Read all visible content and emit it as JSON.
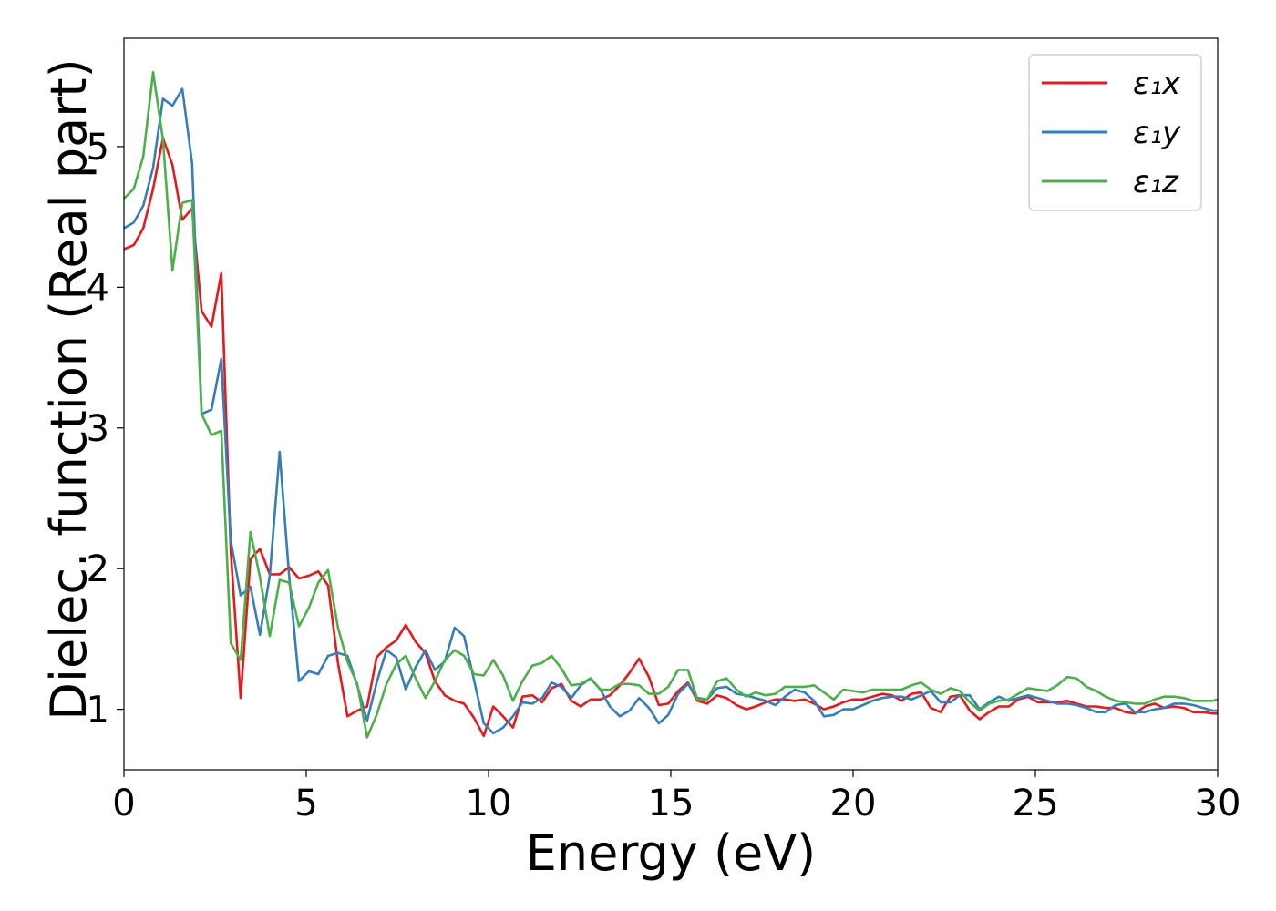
{
  "chart_data": {
    "type": "line",
    "xlabel": "Energy (eV)",
    "ylabel": "Dielec. function (Real part)",
    "xlim": [
      0,
      30
    ],
    "ylim": [
      0.57,
      5.77
    ],
    "xticks": [
      0,
      5,
      10,
      15,
      20,
      25,
      30
    ],
    "yticks": [
      1,
      2,
      3,
      4,
      5
    ],
    "grid": false,
    "legend_position": "top-right",
    "series": [
      {
        "name": "ε₁x",
        "color": "#e41a1c",
        "x": [
          0,
          0.27,
          0.53,
          0.8,
          1.07,
          1.33,
          1.6,
          1.87,
          2.13,
          2.4,
          2.67,
          2.93,
          3.2,
          3.47,
          3.73,
          4.0,
          4.27,
          4.53,
          4.8,
          5.07,
          5.33,
          5.6,
          5.87,
          6.13,
          6.4,
          6.67,
          6.93,
          7.2,
          7.47,
          7.73,
          8.0,
          8.27,
          8.53,
          8.8,
          9.07,
          9.33,
          9.6,
          9.87,
          10.13,
          10.4,
          10.67,
          10.93,
          11.2,
          11.47,
          11.73,
          12.0,
          12.27,
          12.53,
          12.8,
          13.07,
          13.33,
          13.6,
          13.87,
          14.13,
          14.4,
          14.67,
          14.93,
          15.2,
          15.47,
          15.73,
          16.0,
          16.27,
          16.53,
          16.8,
          17.07,
          17.33,
          17.6,
          17.87,
          18.13,
          18.4,
          18.67,
          18.93,
          19.2,
          19.47,
          19.73,
          20.0,
          20.27,
          20.53,
          20.8,
          21.07,
          21.33,
          21.6,
          21.87,
          22.13,
          22.4,
          22.67,
          22.93,
          23.2,
          23.47,
          23.73,
          24.0,
          24.27,
          24.53,
          24.8,
          25.07,
          25.33,
          25.6,
          25.87,
          26.13,
          26.4,
          26.67,
          26.93,
          27.2,
          27.47,
          27.73,
          28.0,
          28.27,
          28.53,
          28.8,
          29.07,
          29.33,
          29.6,
          29.87,
          30
        ],
        "y": [
          4.27,
          4.3,
          4.42,
          4.7,
          5.06,
          4.87,
          4.48,
          4.56,
          3.83,
          3.72,
          4.1,
          2.12,
          1.08,
          2.07,
          2.14,
          1.96,
          1.96,
          2.01,
          1.93,
          1.95,
          1.98,
          1.88,
          1.33,
          0.95,
          0.99,
          1.02,
          1.37,
          1.44,
          1.49,
          1.6,
          1.48,
          1.4,
          1.2,
          1.1,
          1.06,
          1.04,
          0.94,
          0.81,
          1.02,
          0.95,
          0.87,
          1.09,
          1.1,
          1.05,
          1.15,
          1.18,
          1.06,
          1.02,
          1.07,
          1.07,
          1.1,
          1.17,
          1.26,
          1.36,
          1.23,
          1.03,
          1.04,
          1.13,
          1.19,
          1.06,
          1.04,
          1.1,
          1.08,
          1.03,
          1.0,
          1.02,
          1.05,
          1.07,
          1.07,
          1.06,
          1.07,
          1.04,
          1.0,
          1.02,
          1.05,
          1.07,
          1.07,
          1.09,
          1.11,
          1.1,
          1.06,
          1.11,
          1.12,
          1.01,
          0.98,
          1.09,
          1.1,
          0.99,
          0.93,
          0.98,
          1.02,
          1.02,
          1.07,
          1.09,
          1.05,
          1.05,
          1.05,
          1.06,
          1.04,
          1.02,
          1.02,
          1.01,
          1.01,
          0.98,
          0.97,
          1.02,
          1.04,
          1.01,
          1.02,
          1.01,
          0.98,
          0.98,
          0.97,
          0.97
        ]
      },
      {
        "name": "ε₁y",
        "color": "#377eb8",
        "x": [
          0,
          0.27,
          0.53,
          0.8,
          1.07,
          1.33,
          1.6,
          1.87,
          2.13,
          2.4,
          2.67,
          2.93,
          3.2,
          3.47,
          3.73,
          4.0,
          4.27,
          4.53,
          4.8,
          5.07,
          5.33,
          5.6,
          5.87,
          6.13,
          6.4,
          6.67,
          6.93,
          7.2,
          7.47,
          7.73,
          8.0,
          8.27,
          8.53,
          8.8,
          9.07,
          9.33,
          9.6,
          9.87,
          10.13,
          10.4,
          10.67,
          10.93,
          11.2,
          11.47,
          11.73,
          12.0,
          12.27,
          12.53,
          12.8,
          13.07,
          13.33,
          13.6,
          13.87,
          14.13,
          14.4,
          14.67,
          14.93,
          15.2,
          15.47,
          15.73,
          16.0,
          16.27,
          16.53,
          16.8,
          17.07,
          17.33,
          17.6,
          17.87,
          18.13,
          18.4,
          18.67,
          18.93,
          19.2,
          19.47,
          19.73,
          20.0,
          20.27,
          20.53,
          20.8,
          21.07,
          21.33,
          21.6,
          21.87,
          22.13,
          22.4,
          22.67,
          22.93,
          23.2,
          23.47,
          23.73,
          24.0,
          24.27,
          24.53,
          24.8,
          25.07,
          25.33,
          25.6,
          25.87,
          26.13,
          26.4,
          26.67,
          26.93,
          27.2,
          27.47,
          27.73,
          28.0,
          28.27,
          28.53,
          28.8,
          29.07,
          29.33,
          29.6,
          29.87,
          30
        ],
        "y": [
          4.42,
          4.46,
          4.58,
          4.85,
          5.34,
          5.29,
          5.41,
          4.88,
          3.1,
          3.13,
          3.49,
          2.2,
          1.81,
          1.87,
          1.53,
          1.95,
          2.83,
          1.95,
          1.2,
          1.27,
          1.25,
          1.38,
          1.4,
          1.38,
          1.17,
          0.92,
          1.19,
          1.42,
          1.37,
          1.14,
          1.3,
          1.42,
          1.28,
          1.34,
          1.58,
          1.52,
          1.21,
          0.9,
          0.83,
          0.87,
          0.95,
          1.05,
          1.04,
          1.08,
          1.19,
          1.16,
          1.08,
          1.17,
          1.22,
          1.14,
          1.02,
          0.95,
          0.99,
          1.08,
          1.01,
          0.9,
          0.96,
          1.11,
          1.18,
          1.08,
          1.07,
          1.15,
          1.16,
          1.11,
          1.1,
          1.08,
          1.06,
          1.03,
          1.09,
          1.14,
          1.12,
          1.06,
          0.95,
          0.96,
          1.0,
          1.0,
          1.03,
          1.06,
          1.08,
          1.09,
          1.09,
          1.07,
          1.1,
          1.13,
          1.05,
          1.05,
          1.1,
          1.1,
          1.0,
          1.05,
          1.09,
          1.06,
          1.08,
          1.1,
          1.08,
          1.06,
          1.04,
          1.04,
          1.03,
          1.01,
          0.98,
          0.98,
          1.03,
          1.04,
          0.98,
          0.98,
          1.0,
          1.01,
          1.04,
          1.04,
          1.03,
          1.01,
          0.99,
          0.99
        ]
      },
      {
        "name": "ε₁z",
        "color": "#4daf4a",
        "x": [
          0,
          0.27,
          0.53,
          0.8,
          1.07,
          1.33,
          1.6,
          1.87,
          2.13,
          2.4,
          2.67,
          2.93,
          3.2,
          3.47,
          3.73,
          4.0,
          4.27,
          4.53,
          4.8,
          5.07,
          5.33,
          5.6,
          5.87,
          6.13,
          6.4,
          6.67,
          6.93,
          7.2,
          7.47,
          7.73,
          8.0,
          8.27,
          8.53,
          8.8,
          9.07,
          9.33,
          9.6,
          9.87,
          10.13,
          10.4,
          10.67,
          10.93,
          11.2,
          11.47,
          11.73,
          12.0,
          12.27,
          12.53,
          12.8,
          13.07,
          13.33,
          13.6,
          13.87,
          14.13,
          14.4,
          14.67,
          14.93,
          15.2,
          15.47,
          15.73,
          16.0,
          16.27,
          16.53,
          16.8,
          17.07,
          17.33,
          17.6,
          17.87,
          18.13,
          18.4,
          18.67,
          18.93,
          19.2,
          19.47,
          19.73,
          20.0,
          20.27,
          20.53,
          20.8,
          21.07,
          21.33,
          21.6,
          21.87,
          22.13,
          22.4,
          22.67,
          22.93,
          23.2,
          23.47,
          23.73,
          24.0,
          24.27,
          24.53,
          24.8,
          25.07,
          25.33,
          25.6,
          25.87,
          26.13,
          26.4,
          26.67,
          26.93,
          27.2,
          27.47,
          27.73,
          28.0,
          28.27,
          28.53,
          28.8,
          29.07,
          29.33,
          29.6,
          29.87,
          30
        ],
        "y": [
          4.63,
          4.7,
          4.93,
          5.53,
          5.05,
          4.12,
          4.6,
          4.62,
          3.1,
          2.95,
          2.98,
          1.47,
          1.35,
          2.26,
          1.94,
          1.52,
          1.92,
          1.9,
          1.59,
          1.72,
          1.9,
          1.99,
          1.58,
          1.34,
          1.18,
          0.8,
          0.96,
          1.18,
          1.32,
          1.38,
          1.22,
          1.08,
          1.2,
          1.35,
          1.42,
          1.38,
          1.25,
          1.24,
          1.35,
          1.24,
          1.06,
          1.2,
          1.31,
          1.33,
          1.38,
          1.29,
          1.17,
          1.18,
          1.22,
          1.14,
          1.14,
          1.18,
          1.18,
          1.17,
          1.11,
          1.11,
          1.16,
          1.28,
          1.28,
          1.07,
          1.07,
          1.2,
          1.22,
          1.14,
          1.09,
          1.12,
          1.1,
          1.11,
          1.16,
          1.16,
          1.16,
          1.17,
          1.12,
          1.07,
          1.14,
          1.13,
          1.12,
          1.14,
          1.14,
          1.14,
          1.14,
          1.17,
          1.19,
          1.14,
          1.11,
          1.15,
          1.13,
          1.05,
          0.99,
          1.04,
          1.06,
          1.07,
          1.11,
          1.15,
          1.14,
          1.13,
          1.17,
          1.23,
          1.22,
          1.16,
          1.13,
          1.09,
          1.06,
          1.05,
          1.04,
          1.04,
          1.07,
          1.09,
          1.09,
          1.08,
          1.06,
          1.06,
          1.06,
          1.07
        ]
      }
    ]
  }
}
